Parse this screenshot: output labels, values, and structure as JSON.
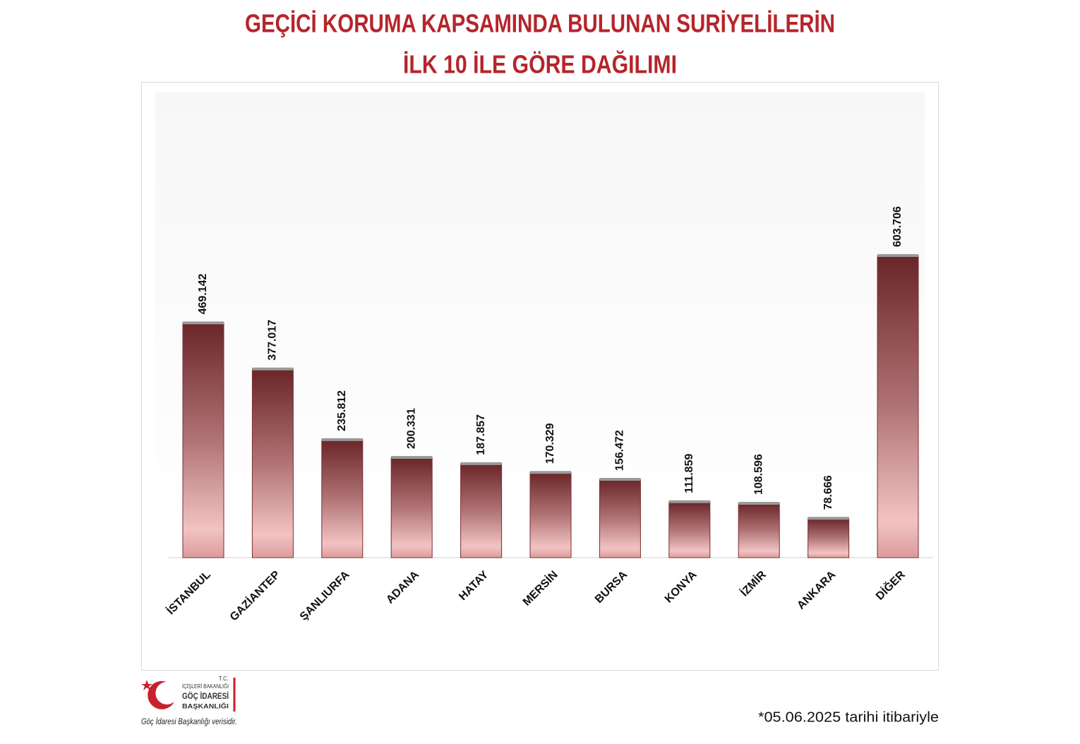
{
  "chart_data": {
    "type": "bar",
    "title_lines": [
      "GEÇİCİ KORUMA KAPSAMINDA BULUNAN SURİYELİLERİN",
      "İLK 10 İLE GÖRE DAĞILIMI"
    ],
    "categories": [
      "İSTANBUL",
      "GAZİANTEP",
      "ŞANLIURFA",
      "ADANA",
      "HATAY",
      "MERSİN",
      "BURSA",
      "KONYA",
      "İZMİR",
      "ANKARA",
      "DİĞER"
    ],
    "values": [
      469142,
      377017,
      235812,
      200331,
      187857,
      170329,
      156472,
      111859,
      108596,
      78666,
      603706
    ],
    "value_labels": [
      "469.142",
      "377.017",
      "235.812",
      "200.331",
      "187.857",
      "170.329",
      "156.472",
      "111.859",
      "108.596",
      "78.666",
      "603.706"
    ],
    "color": "#7a2e30",
    "logo_lines": [
      "T.C.",
      "İÇİŞLERİ BAKANLIĞI",
      "GÖÇ İDARESİ",
      "BAŞKANLIĞI"
    ],
    "source": "Göç İdaresi Başkanlığı verisidir.",
    "note": "*05.06.2025 tarihi itibariyle"
  }
}
